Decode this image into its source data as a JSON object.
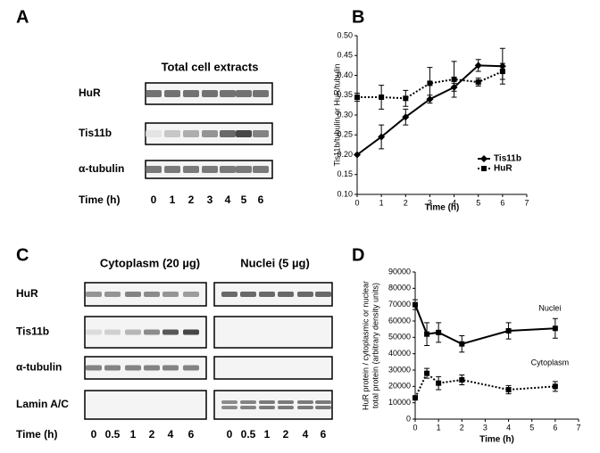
{
  "panels": {
    "a": {
      "letter": "A",
      "title": "Total cell extracts",
      "rows": [
        "HuR",
        "Tis11b",
        "α-tubulin"
      ],
      "time_label": "Time (h)",
      "times": [
        "0",
        "1",
        "2",
        "3",
        "4",
        "5",
        "6"
      ]
    },
    "b": {
      "letter": "B"
    },
    "c": {
      "letter": "C",
      "groups": [
        "Cytoplasm (20 µg)",
        "Nuclei (5 µg)"
      ],
      "rows": [
        "HuR",
        "Tis11b",
        "α-tubulin",
        "Lamin A/C"
      ],
      "time_label": "Time (h)",
      "times": [
        "0",
        "0.5",
        "1",
        "2",
        "4",
        "6"
      ]
    },
    "d": {
      "letter": "D"
    }
  },
  "chart_data": [
    {
      "type": "line",
      "xlabel": "Time (h)",
      "ylabel": [
        "Tis11b/tubulin or HuR/tubulin"
      ],
      "xlim": [
        0,
        7
      ],
      "xticks": [
        0,
        1,
        2,
        3,
        4,
        5,
        6,
        7
      ],
      "ylim": [
        0.1,
        0.5
      ],
      "yticks": [
        {
          "value": 0.1,
          "label": "0.10"
        },
        {
          "value": 0.15,
          "label": "0.15"
        },
        {
          "value": 0.2,
          "label": "0.20"
        },
        {
          "value": 0.25,
          "label": "0.25"
        },
        {
          "value": 0.3,
          "label": "0.30"
        },
        {
          "value": 0.35,
          "label": "0.35"
        },
        {
          "value": 0.4,
          "label": "0.40"
        },
        {
          "value": 0.45,
          "label": "0.45"
        },
        {
          "value": 0.5,
          "label": "0.50"
        }
      ],
      "legend": "lower right",
      "series": [
        {
          "name": "Tis11b",
          "color": "#000000",
          "dash": "solid",
          "marker": "diamond",
          "x": [
            0,
            1,
            2,
            3,
            4,
            5,
            6
          ],
          "values": [
            0.2,
            0.245,
            0.295,
            0.34,
            0.37,
            0.425,
            0.423
          ],
          "errors": [
            0,
            0.03,
            0.02,
            0.01,
            0.01,
            0.015,
            0.045
          ]
        },
        {
          "name": "HuR",
          "color": "#000000",
          "dash": "dotted",
          "marker": "square",
          "x": [
            0,
            1,
            2,
            3,
            4,
            5,
            6
          ],
          "values": [
            0.345,
            0.345,
            0.342,
            0.38,
            0.39,
            0.383,
            0.41
          ],
          "errors": [
            0.01,
            0.03,
            0.02,
            0.04,
            0.045,
            0.01,
            0.02
          ]
        }
      ]
    },
    {
      "type": "line",
      "xlabel": "Time (h)",
      "ylabel": [
        "HuR protein / cytoplasmic or nuclear",
        "total protein (arbitrary density units)"
      ],
      "xlim": [
        0,
        7
      ],
      "xticks": [
        0,
        1,
        2,
        3,
        4,
        5,
        6,
        7
      ],
      "ylim": [
        0,
        90000
      ],
      "yticks": [
        0,
        10000,
        20000,
        30000,
        40000,
        50000,
        60000,
        70000,
        80000,
        90000
      ],
      "legend": "inline",
      "series": [
        {
          "name": "Nuclei",
          "color": "#000000",
          "dash": "solid",
          "marker": "square",
          "x": [
            0,
            0.5,
            1,
            2,
            4,
            6
          ],
          "values": [
            70000,
            52000,
            53000,
            46000,
            54000,
            55500
          ],
          "errors": [
            3000,
            7000,
            6000,
            5000,
            5000,
            6000
          ]
        },
        {
          "name": "Cytoplasm",
          "color": "#000000",
          "dash": "dotted",
          "marker": "square",
          "x": [
            0,
            0.5,
            1,
            2,
            4,
            6
          ],
          "values": [
            13000,
            28000,
            22000,
            24000,
            18000,
            20000
          ],
          "errors": [
            1000,
            3000,
            4000,
            3000,
            2500,
            3000
          ]
        }
      ]
    }
  ]
}
